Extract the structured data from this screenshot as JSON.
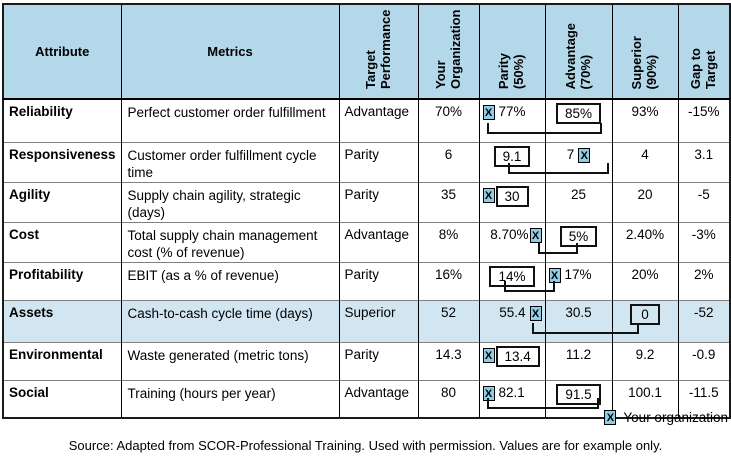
{
  "columns": [
    {
      "label": "Attribute",
      "rotated": false
    },
    {
      "label": "Metrics",
      "rotated": false
    },
    {
      "label": "Target\nPerformance",
      "rotated": true
    },
    {
      "label": "Your\nOrganization",
      "rotated": true
    },
    {
      "label": "Parity\n(50%)",
      "rotated": true
    },
    {
      "label": "Advantage\n(70%)",
      "rotated": true
    },
    {
      "label": "Superior\n(90%)",
      "rotated": true
    },
    {
      "label": "Gap to\nTarget",
      "rotated": true
    }
  ],
  "rows": [
    {
      "attribute": "Reliability",
      "metrics": "Perfect customer order fulfillment",
      "target": "Advantage",
      "your_org": "70%",
      "parity": {
        "value": "77%",
        "marker": "before",
        "boxed": false
      },
      "advantage": {
        "value": "85%",
        "boxed": true
      },
      "superior": {
        "value": "93%"
      },
      "gap": "-15%",
      "connector": "marker in Parity linked to boxed target in Advantage"
    },
    {
      "attribute": "Responsiveness",
      "metrics": "Customer order fulfillment cycle time",
      "target": "Parity",
      "your_org": "6",
      "parity": {
        "value": "9.1",
        "boxed": true
      },
      "advantage": {
        "value": "7",
        "marker": "after",
        "boxed": false
      },
      "superior": {
        "value": "4"
      },
      "gap": "3.1",
      "connector": "boxed target in Parity linked to marker in Advantage"
    },
    {
      "attribute": "Agility",
      "metrics": "Supply chain agility, strategic (days)",
      "target": "Parity",
      "your_org": "35",
      "parity": {
        "value": "30",
        "marker": "before",
        "boxed": true
      },
      "advantage": {
        "value": "25"
      },
      "superior": {
        "value": "20"
      },
      "gap": "-5",
      "connector": "marker adjacent to boxed target in Parity"
    },
    {
      "attribute": "Cost",
      "metrics": "Total supply chain management cost (% of revenue)",
      "target": "Advantage",
      "your_org": "8%",
      "parity": {
        "value": "8.70%",
        "marker": "after",
        "boxed": false
      },
      "advantage": {
        "value": "5%",
        "boxed": true
      },
      "superior": {
        "value": "2.40%"
      },
      "gap": "-3%",
      "connector": "marker in Parity linked to boxed target in Advantage"
    },
    {
      "attribute": "Profitability",
      "metrics": "EBIT (as a % of revenue)",
      "target": "Parity",
      "your_org": "16%",
      "parity": {
        "value": "14%",
        "boxed": true
      },
      "advantage": {
        "value": "17%",
        "marker": "before",
        "boxed": false
      },
      "superior": {
        "value": "20%"
      },
      "gap": "2%",
      "connector": "boxed target in Parity linked to marker in Advantage"
    },
    {
      "attribute": "Assets",
      "metrics": "Cash-to-cash cycle time (days)",
      "target": "Superior",
      "your_org": "52",
      "parity": {
        "value": "55.4",
        "marker": "after",
        "boxed": false
      },
      "advantage": {
        "value": "30.5"
      },
      "superior": {
        "value": "0",
        "boxed": true
      },
      "gap": "-52",
      "connector": "marker in Parity linked to boxed target in Superior",
      "highlighted": true
    },
    {
      "attribute": "Environmental",
      "metrics": "Waste generated (metric tons)",
      "target": "Parity",
      "your_org": "14.3",
      "parity": {
        "value": "13.4",
        "marker": "before",
        "boxed": true
      },
      "advantage": {
        "value": "11.2"
      },
      "superior": {
        "value": "9.2"
      },
      "gap": "-0.9",
      "connector": "marker adjacent to boxed target in Parity"
    },
    {
      "attribute": "Social",
      "metrics": "Training (hours per year)",
      "target": "Advantage",
      "your_org": "80",
      "parity": {
        "value": "82.1",
        "marker": "before",
        "boxed": false
      },
      "advantage": {
        "value": "91.5",
        "boxed": true
      },
      "superior": {
        "value": "100.1"
      },
      "gap": "-11.5",
      "connector": "marker in Parity linked to boxed target in Advantage"
    }
  ],
  "legend": {
    "marker_symbol": "X",
    "label": "Your organization"
  },
  "source_note": "Source: Adapted from SCOR-Professional Training. Used with permission. Values are for example only.",
  "colors": {
    "header_bg": "#b3d8ea",
    "highlight_row_bg": "#d2e6f2",
    "marker_bg": "#8fcde6"
  }
}
